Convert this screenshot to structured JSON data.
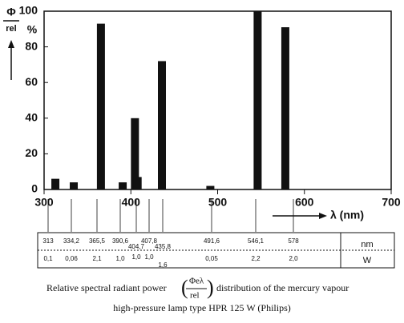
{
  "chart_data": {
    "type": "bar",
    "y_label_top": "Φ",
    "y_label_bottom": "rel",
    "y_unit": "%",
    "x_label": "λ (nm)",
    "x": [
      313,
      334.2,
      365.5,
      390.6,
      404.7,
      407.8,
      435.8,
      491.6,
      546.1,
      578
    ],
    "values": [
      6,
      4,
      93,
      4,
      40,
      7,
      72,
      2,
      100,
      91
    ],
    "color": "#111111",
    "xlim": [
      300,
      700
    ],
    "xticks": [
      300,
      400,
      500,
      600,
      700
    ],
    "ylim": [
      0,
      100
    ],
    "yticks": [
      0,
      20,
      40,
      60,
      80,
      100
    ]
  },
  "table": {
    "wavelengths": [
      "313",
      "334,2",
      "365,5",
      "390,6",
      "404,7",
      "407,8",
      "435,8",
      "491,6",
      "546,1",
      "578"
    ],
    "powers": [
      "0,1",
      "0,06",
      "2,1",
      "1,0",
      "1,0",
      "1,0",
      "1,6",
      "0,05",
      "2,2",
      "2,0"
    ],
    "units": [
      "nm",
      "W"
    ]
  },
  "caption": {
    "line1_start": "Relative spectral radiant power",
    "fraction_top": "Φeλ",
    "fraction_bottom": "rel",
    "line1_end": "distribution of the mercury vapour",
    "line2": "high-pressure lamp type HPR 125 W (Philips)"
  }
}
